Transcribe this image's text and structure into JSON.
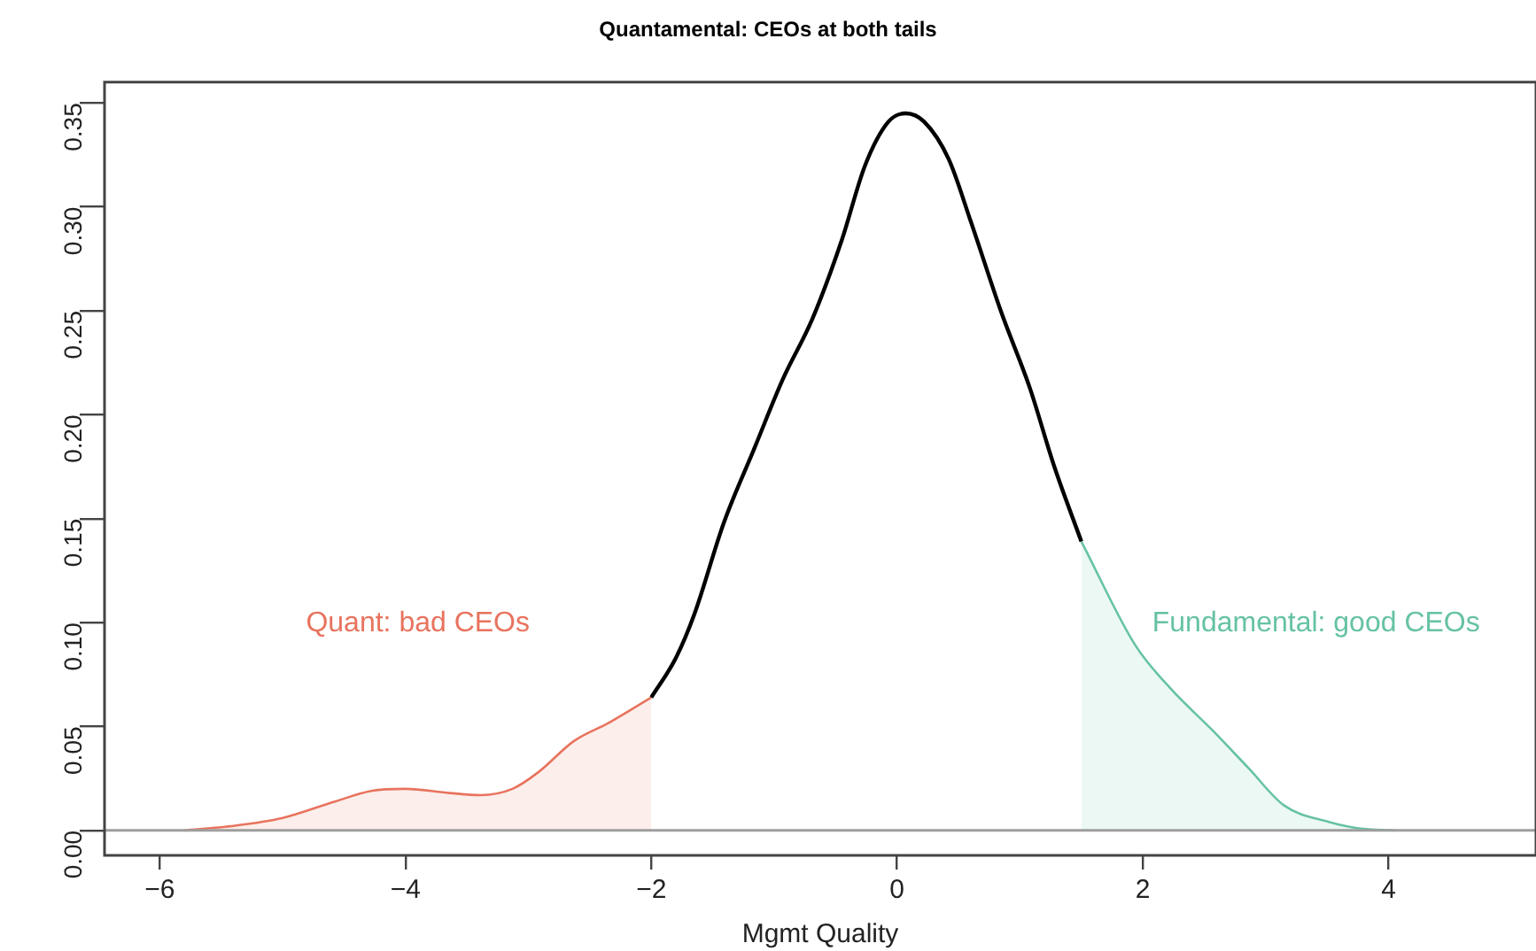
{
  "chart_data": {
    "type": "line",
    "title": "Quantamental: CEOs at both tails",
    "xlabel": "Mgmt Quality",
    "xlim": [
      -6.45,
      5.2
    ],
    "xticks": [
      -6,
      -4,
      -2,
      0,
      2,
      4
    ],
    "ylim": [
      -0.012,
      0.36
    ],
    "yticks": [
      {
        "value": 0,
        "label": "0.00"
      },
      {
        "value": 0.05,
        "label": "0.05"
      },
      {
        "value": 0.1,
        "label": "0.10"
      },
      {
        "value": 0.15,
        "label": "0.15"
      },
      {
        "value": 0.2,
        "label": "0.20"
      },
      {
        "value": 0.25,
        "label": "0.25"
      },
      {
        "value": 0.3,
        "label": "0.30"
      },
      {
        "value": 0.35,
        "label": "0.35"
      }
    ],
    "grid": false,
    "legend": false,
    "marker": "none",
    "line_style": "solid",
    "series": [
      {
        "type": "area",
        "color": "#e8735e",
        "x": [
          -5.8,
          -5.43,
          -5.0,
          -4.57,
          -4.28,
          -4.0,
          -3.64,
          -3.39,
          -3.13,
          -2.92,
          -2.63,
          -2.34,
          -2.0
        ],
        "values": [
          0,
          0.002,
          0.006,
          0.014,
          0.019,
          0.02,
          0.018,
          0.017,
          0.02,
          0.028,
          0.043,
          0.052,
          0.064
        ]
      },
      {
        "type": "area",
        "color": "#66c2a5",
        "x": [
          1.5,
          1.94,
          2.23,
          2.57,
          2.86,
          3.15,
          3.52,
          3.76,
          4.05
        ],
        "values": [
          0.139,
          0.089,
          0.068,
          0.048,
          0.03,
          0.012,
          0.004,
          0.001,
          0
        ]
      },
      {
        "type": "line",
        "color": "#000000",
        "x": [
          -2.0,
          -1.8,
          -1.65,
          -1.41,
          -1.16,
          -0.93,
          -0.69,
          -0.45,
          -0.26,
          -0.07,
          0.07,
          0.22,
          0.42,
          0.6,
          0.85,
          1.08,
          1.28,
          1.5
        ],
        "values": [
          0.064,
          0.083,
          0.104,
          0.148,
          0.184,
          0.217,
          0.246,
          0.284,
          0.32,
          0.341,
          0.345,
          0.341,
          0.323,
          0.293,
          0.249,
          0.213,
          0.175,
          0.139
        ]
      }
    ],
    "ref_lines": [
      {
        "axis": "y",
        "value": 0,
        "color": "#9e9e9e"
      }
    ],
    "annotations": [
      "Quant: bad CEOs",
      "Fundamental: good CEOs"
    ]
  }
}
